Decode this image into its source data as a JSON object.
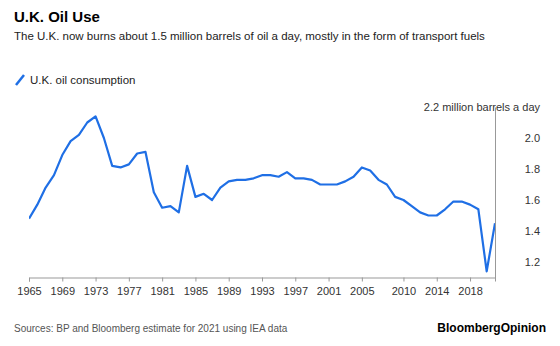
{
  "chart_data": {
    "type": "line",
    "title": "U.K. Oil Use",
    "subtitle": "The U.K. now burns about 1.5 million barrels of oil a day, mostly in the form of transport fuels",
    "source": "Sources: BP and Bloomberg estimate for 2021 using IEA data",
    "logo": "BloombergOpinion",
    "x": [
      1965,
      1966,
      1967,
      1968,
      1969,
      1970,
      1971,
      1972,
      1973,
      1974,
      1975,
      1976,
      1977,
      1978,
      1979,
      1980,
      1981,
      1982,
      1983,
      1984,
      1985,
      1986,
      1987,
      1988,
      1989,
      1990,
      1991,
      1992,
      1993,
      1994,
      1995,
      1996,
      1997,
      1998,
      1999,
      2000,
      2001,
      2002,
      2003,
      2004,
      2005,
      2006,
      2007,
      2008,
      2009,
      2010,
      2011,
      2012,
      2013,
      2014,
      2015,
      2016,
      2017,
      2018,
      2019,
      2020,
      2021
    ],
    "series": [
      {
        "name": "U.K. oil consumption",
        "color": "#1f6fe5",
        "values": [
          1.48,
          1.57,
          1.68,
          1.76,
          1.89,
          1.98,
          2.02,
          2.1,
          2.14,
          2.0,
          1.82,
          1.81,
          1.83,
          1.9,
          1.91,
          1.65,
          1.55,
          1.56,
          1.52,
          1.82,
          1.62,
          1.64,
          1.6,
          1.68,
          1.72,
          1.73,
          1.73,
          1.74,
          1.76,
          1.76,
          1.75,
          1.78,
          1.74,
          1.74,
          1.73,
          1.7,
          1.7,
          1.7,
          1.72,
          1.75,
          1.81,
          1.79,
          1.73,
          1.7,
          1.62,
          1.6,
          1.56,
          1.52,
          1.5,
          1.5,
          1.54,
          1.59,
          1.59,
          1.57,
          1.54,
          1.14,
          1.45
        ]
      }
    ],
    "xlim": [
      1965,
      2021
    ],
    "xticks": [
      1965,
      1969,
      1973,
      1977,
      1981,
      1985,
      1989,
      1993,
      1997,
      2001,
      2005,
      2010,
      2014,
      2018
    ],
    "ylim": [
      1.1,
      2.2
    ],
    "yticks": [
      1.2,
      1.4,
      1.6,
      1.8,
      {
        "value": 2,
        "label": "2.0"
      },
      {
        "value": 2.2,
        "label": "2.2 million barrels a day"
      }
    ],
    "grid": false,
    "legend": "top-left"
  }
}
